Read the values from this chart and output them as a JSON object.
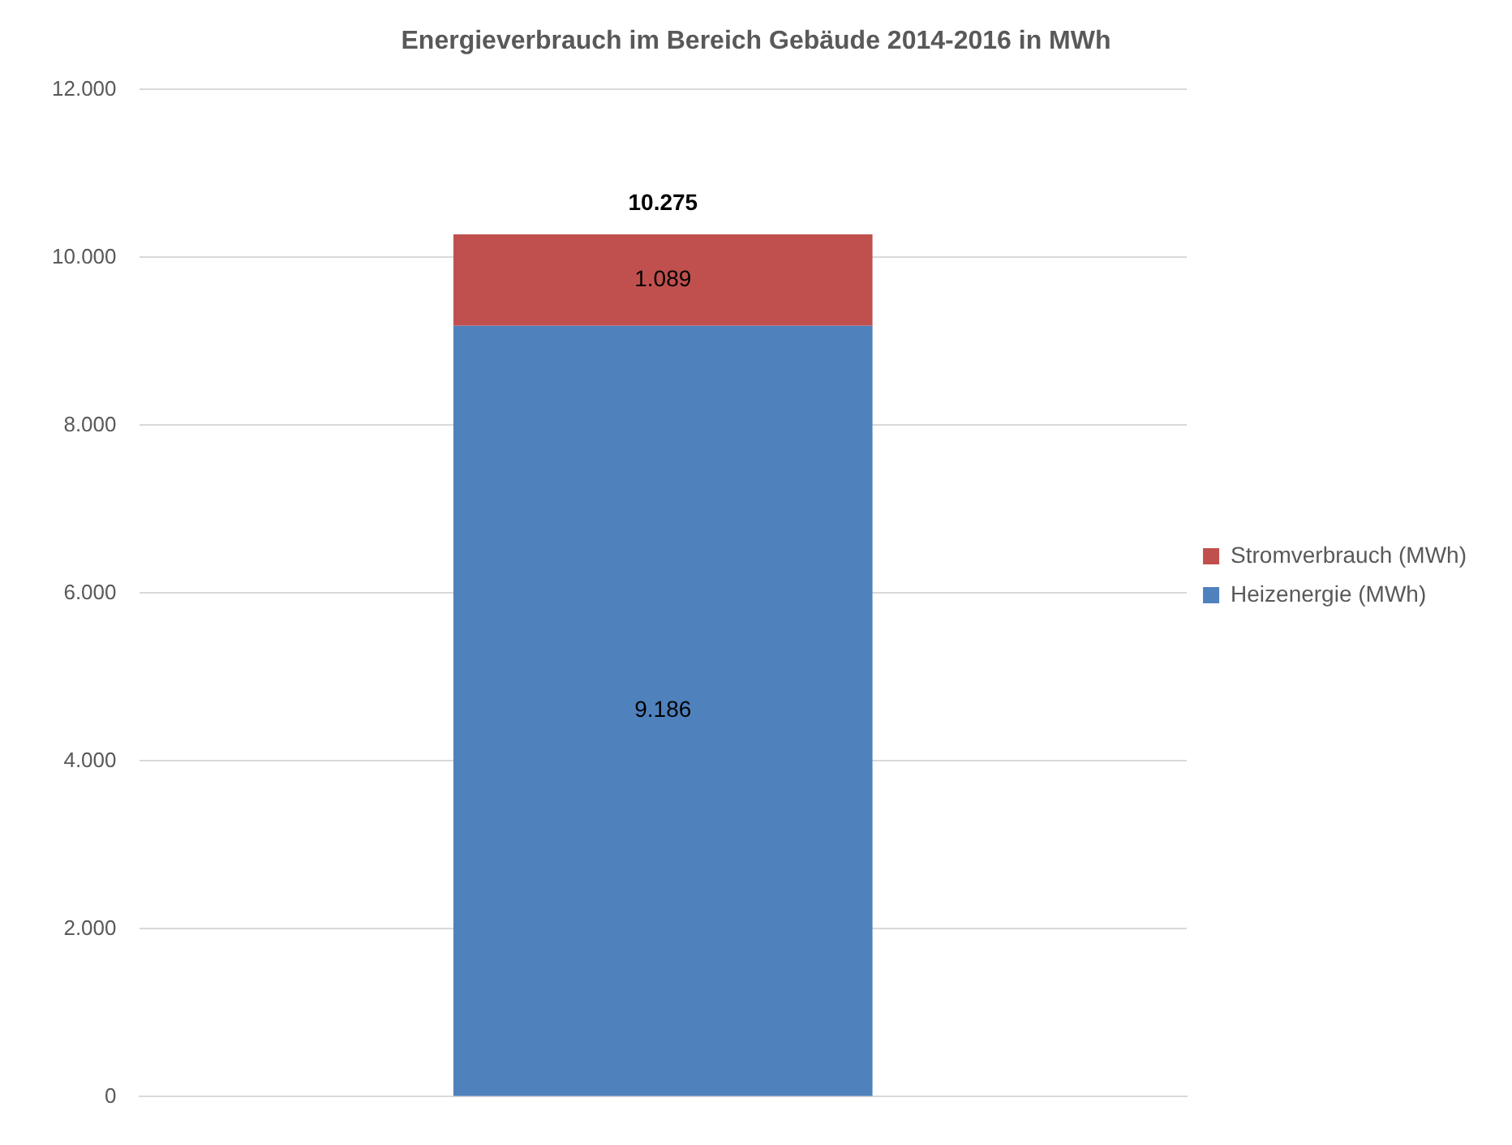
{
  "chart_data": {
    "type": "bar",
    "title": "Energieverbrauch im Bereich Gebäude 2014-2016 in MWh",
    "categories": [
      null
    ],
    "stacked": true,
    "series": [
      {
        "name": "Heizenergie (MWh)",
        "color": "#4f81bd",
        "values": [
          9186
        ],
        "value_labels": [
          "9.186"
        ]
      },
      {
        "name": "Stromverbrauch (MWh)",
        "color": "#c0504d",
        "values": [
          1089
        ],
        "value_labels": [
          "1.089"
        ]
      }
    ],
    "totals": [
      "10.275"
    ],
    "ylim": [
      0,
      12000
    ],
    "yticks": [
      0,
      {
        "value": 2000,
        "label": "2.000"
      },
      {
        "value": 4000,
        "label": "4.000"
      },
      {
        "value": 6000,
        "label": "6.000"
      },
      {
        "value": 8000,
        "label": "8.000"
      },
      {
        "value": 10000,
        "label": "10.000"
      },
      {
        "value": 12000,
        "label": "12.000"
      }
    ],
    "grid": "y",
    "legend": "right"
  }
}
